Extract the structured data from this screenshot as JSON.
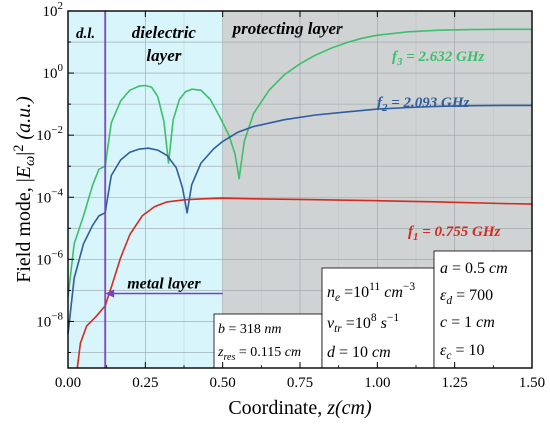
{
  "chart_data": {
    "type": "line",
    "xlabel": "Coordinate, z(cm)",
    "ylabel": "Field mode, |E_ω|² (a.u.)",
    "xlim": [
      0,
      1.5
    ],
    "ylim_log10": [
      -9.5,
      2
    ],
    "y_scale": "log",
    "grid": true,
    "x_ticks": [
      "0.00",
      "0.25",
      "0.50",
      "0.75",
      "1.00",
      "1.25",
      "1.50"
    ],
    "x_tick_values": [
      0,
      0.25,
      0.5,
      0.75,
      1.0,
      1.25,
      1.5
    ],
    "y_tick_exponents": [
      -8,
      -6,
      -4,
      -2,
      0,
      2
    ],
    "regions": [
      {
        "label": "d.l.",
        "x_start": 0.0,
        "x_end": 0.12,
        "color": "#d8f5fb"
      },
      {
        "label_lines": [
          "dielectric",
          "layer"
        ],
        "x_start": 0.12,
        "x_end": 0.5,
        "color": "#d8f5fb"
      },
      {
        "label": "protecting layer",
        "x_start": 0.5,
        "x_end": 1.5,
        "color": "#cfd3d3"
      }
    ],
    "boundary_x": 0.12,
    "metal_layer": {
      "label": "metal layer",
      "x_start": 0.12,
      "x_end": 0.5,
      "y_log10": -7.1
    },
    "series": [
      {
        "name": "f₃ = 2.632 GHz",
        "color": "#3cbf6a",
        "points": [
          [
            0,
            -7.2
          ],
          [
            0.02,
            -5.5
          ],
          [
            0.05,
            -4.6
          ],
          [
            0.08,
            -3.6
          ],
          [
            0.1,
            -3.1
          ],
          [
            0.12,
            -3.0
          ],
          [
            0.14,
            -1.6
          ],
          [
            0.17,
            -0.9
          ],
          [
            0.2,
            -0.55
          ],
          [
            0.23,
            -0.42
          ],
          [
            0.25,
            -0.4
          ],
          [
            0.27,
            -0.45
          ],
          [
            0.29,
            -0.75
          ],
          [
            0.31,
            -1.55
          ],
          [
            0.325,
            -2.9
          ],
          [
            0.34,
            -1.5
          ],
          [
            0.36,
            -0.85
          ],
          [
            0.38,
            -0.6
          ],
          [
            0.4,
            -0.52
          ],
          [
            0.43,
            -0.55
          ],
          [
            0.46,
            -0.85
          ],
          [
            0.49,
            -1.4
          ],
          [
            0.52,
            -2.0
          ],
          [
            0.54,
            -2.6
          ],
          [
            0.553,
            -3.4
          ],
          [
            0.57,
            -2.2
          ],
          [
            0.6,
            -1.3
          ],
          [
            0.65,
            -0.55
          ],
          [
            0.7,
            -0.05
          ],
          [
            0.75,
            0.3
          ],
          [
            0.8,
            0.58
          ],
          [
            0.85,
            0.8
          ],
          [
            0.9,
            0.98
          ],
          [
            0.95,
            1.12
          ],
          [
            1.0,
            1.22
          ],
          [
            1.1,
            1.33
          ],
          [
            1.2,
            1.38
          ],
          [
            1.3,
            1.4
          ],
          [
            1.4,
            1.41
          ],
          [
            1.5,
            1.41
          ]
        ]
      },
      {
        "name": "f₂ = 2.093 GHz",
        "color": "#2f5d9e",
        "points": [
          [
            0,
            -8.4
          ],
          [
            0.02,
            -6.6
          ],
          [
            0.05,
            -5.5
          ],
          [
            0.08,
            -4.9
          ],
          [
            0.1,
            -4.6
          ],
          [
            0.12,
            -4.5
          ],
          [
            0.14,
            -3.3
          ],
          [
            0.17,
            -2.8
          ],
          [
            0.2,
            -2.55
          ],
          [
            0.23,
            -2.45
          ],
          [
            0.26,
            -2.42
          ],
          [
            0.29,
            -2.48
          ],
          [
            0.32,
            -2.65
          ],
          [
            0.35,
            -3.05
          ],
          [
            0.37,
            -3.7
          ],
          [
            0.385,
            -4.5
          ],
          [
            0.4,
            -3.6
          ],
          [
            0.43,
            -2.9
          ],
          [
            0.47,
            -2.45
          ],
          [
            0.5,
            -2.2
          ],
          [
            0.55,
            -1.9
          ],
          [
            0.6,
            -1.72
          ],
          [
            0.7,
            -1.5
          ],
          [
            0.8,
            -1.35
          ],
          [
            0.9,
            -1.25
          ],
          [
            1.0,
            -1.16
          ],
          [
            1.1,
            -1.11
          ],
          [
            1.2,
            -1.07
          ],
          [
            1.3,
            -1.05
          ],
          [
            1.4,
            -1.04
          ],
          [
            1.5,
            -1.04
          ]
        ]
      },
      {
        "name": "f₁ = 0.755 GHz",
        "color": "#d42a22",
        "points": [
          [
            0.03,
            -9.5
          ],
          [
            0.04,
            -8.7
          ],
          [
            0.06,
            -8.15
          ],
          [
            0.09,
            -7.85
          ],
          [
            0.12,
            -7.5
          ],
          [
            0.14,
            -6.9
          ],
          [
            0.17,
            -5.95
          ],
          [
            0.2,
            -5.2
          ],
          [
            0.24,
            -4.6
          ],
          [
            0.28,
            -4.3
          ],
          [
            0.32,
            -4.15
          ],
          [
            0.38,
            -4.08
          ],
          [
            0.44,
            -4.05
          ],
          [
            0.5,
            -4.03
          ],
          [
            0.6,
            -4.05
          ],
          [
            0.8,
            -4.08
          ],
          [
            1.0,
            -4.11
          ],
          [
            1.2,
            -4.15
          ],
          [
            1.4,
            -4.2
          ],
          [
            1.5,
            -4.22
          ]
        ]
      }
    ],
    "annotations": {
      "box1": [
        "b = 318 nm",
        "z_res = 0.115 cm"
      ],
      "box2": [
        "n_e = 10¹¹ cm⁻³",
        "ν_tr = 10⁸ s⁻¹",
        "d = 10 cm"
      ],
      "box3": [
        "a = 0.5 cm",
        "ε_d = 700",
        "c = 1 cm",
        "ε_c = 10"
      ]
    }
  }
}
